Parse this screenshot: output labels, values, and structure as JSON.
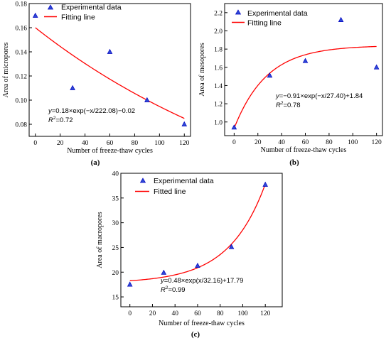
{
  "chart_data": [
    {
      "id": "a",
      "type": "scatter",
      "panel_label": "(a)",
      "xlabel": "Number of freeze-thaw cycles",
      "ylabel": "Area of micropores",
      "xlim": [
        -5,
        125
      ],
      "ylim": [
        0.07,
        0.18
      ],
      "xticks": [
        0,
        20,
        40,
        60,
        80,
        100,
        120
      ],
      "yticks": [
        0.08,
        0.1,
        0.12,
        0.14,
        0.16,
        0.18
      ],
      "ytick_labels": [
        "0.08",
        "0.10",
        "0.12",
        "0.14",
        "0.16",
        "0.18"
      ],
      "grid": false,
      "legend": {
        "position": "top-left",
        "entries": [
          "Experimental data",
          "Fitting line"
        ]
      },
      "series": [
        {
          "name": "Experimental data",
          "kind": "points",
          "marker": "triangle",
          "color": "#0000ff",
          "x": [
            0,
            30,
            60,
            90,
            120
          ],
          "y": [
            0.17,
            0.11,
            0.14,
            0.1,
            0.08
          ]
        },
        {
          "name": "Fitting line",
          "kind": "curve",
          "color": "#ff0000",
          "model": {
            "A": 0.18,
            "t": -222.08,
            "c": -0.02
          },
          "xrange": [
            0,
            120
          ]
        }
      ],
      "equation": {
        "main": "=0.18×exp(−x/222.08)−0.02",
        "r2": "=0.72"
      }
    },
    {
      "id": "b",
      "type": "scatter",
      "panel_label": "(b)",
      "xlabel": "Number of freeze-thaw cycles",
      "ylabel": "Area of mesopores",
      "xlim": [
        -8,
        125
      ],
      "ylim": [
        0.85,
        2.3
      ],
      "xticks": [
        0,
        20,
        40,
        60,
        80,
        100,
        120
      ],
      "yticks": [
        1.0,
        1.2,
        1.4,
        1.6,
        1.8,
        2.0,
        2.2
      ],
      "ytick_labels": [
        "1.0",
        "1.2",
        "1.4",
        "1.6",
        "1.8",
        "2.0",
        "2.2"
      ],
      "grid": false,
      "legend": {
        "position": "top-left",
        "entries": [
          "Experimental data",
          "Fitting line"
        ]
      },
      "series": [
        {
          "name": "Experimental data",
          "kind": "points",
          "marker": "triangle",
          "color": "#0000ff",
          "x": [
            0,
            30,
            60,
            90,
            120
          ],
          "y": [
            0.94,
            1.51,
            1.67,
            2.12,
            1.6
          ]
        },
        {
          "name": "Fitting line",
          "kind": "curve",
          "color": "#ff0000",
          "model": {
            "A": -0.91,
            "t": -27.4,
            "c": 1.84
          },
          "xrange": [
            0,
            120
          ]
        }
      ],
      "equation": {
        "main": "=−0.91×exp(−x/27.40)+1.84",
        "r2": "=0.78"
      }
    },
    {
      "id": "c",
      "type": "scatter",
      "panel_label": "(c)",
      "xlabel": "Number of freeze-thaw cycles",
      "ylabel": "Area of macropores",
      "xlim": [
        -8,
        135
      ],
      "ylim": [
        13,
        40
      ],
      "xticks": [
        0,
        20,
        40,
        60,
        80,
        100,
        120
      ],
      "yticks": [
        15,
        20,
        25,
        30,
        35,
        40
      ],
      "ytick_labels": [
        "15",
        "20",
        "25",
        "30",
        "35",
        "40"
      ],
      "grid": false,
      "legend": {
        "position": "top-left",
        "entries": [
          "Experimental data",
          "Fitted line"
        ]
      },
      "series": [
        {
          "name": "Experimental data",
          "kind": "points",
          "marker": "triangle",
          "color": "#0000ff",
          "x": [
            0,
            30,
            60,
            90,
            120
          ],
          "y": [
            17.5,
            19.9,
            21.3,
            25.1,
            37.7
          ]
        },
        {
          "name": "Fitted line",
          "kind": "curve",
          "color": "#ff0000",
          "model": {
            "A": 0.48,
            "t": 32.16,
            "c": 17.79
          },
          "xrange": [
            0,
            120
          ]
        }
      ],
      "equation": {
        "main": "=0.48×exp(x/32.16)+17.79",
        "r2": "=0.99"
      }
    }
  ]
}
